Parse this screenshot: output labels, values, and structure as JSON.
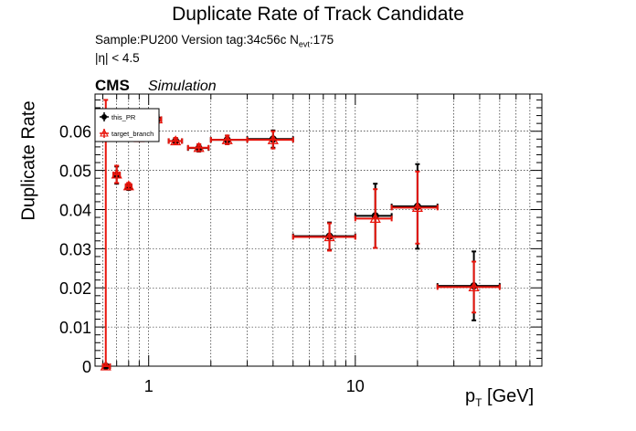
{
  "chart_data": {
    "type": "scatter",
    "title": "Duplicate Rate of Track Candidate",
    "info": {
      "sample_line_a": "Sample:PU200   Version tag:34c56c  N",
      "sample_line_sub": "evt",
      "sample_line_b": ":175",
      "eta_line": "|η| < 4.5"
    },
    "experiment_label": "CMS",
    "status_label": "Simulation",
    "xlabel": {
      "main": "p",
      "sub": "T",
      "unit": " [GeV]"
    },
    "ylabel": "Duplicate Rate",
    "x_scale": "log",
    "xlim": [
      0.55,
      80
    ],
    "ylim": [
      0,
      0.0695
    ],
    "x_tick_labels": [
      {
        "value": 1,
        "label": "1"
      },
      {
        "value": 10,
        "label": "10"
      }
    ],
    "y_tick_labels": [
      {
        "value": 0,
        "label": "0"
      },
      {
        "value": 0.01,
        "label": "0.01"
      },
      {
        "value": 0.02,
        "label": "0.02"
      },
      {
        "value": 0.03,
        "label": "0.03"
      },
      {
        "value": 0.04,
        "label": "0.04"
      },
      {
        "value": 0.05,
        "label": "0.05"
      },
      {
        "value": 0.06,
        "label": "0.06"
      }
    ],
    "grid": true,
    "legend_position": "top-left",
    "series": [
      {
        "name": "this_PR",
        "color": "#000000",
        "marker": "filled-circle",
        "points": [
          {
            "x": 0.62,
            "y": 0.0,
            "xlo": 0.6,
            "xhi": 0.65,
            "err": 0.0
          },
          {
            "x": 0.7,
            "y": 0.0488,
            "xlo": 0.675,
            "xhi": 0.725,
            "err": 0.0022
          },
          {
            "x": 0.8,
            "y": 0.0458,
            "xlo": 0.775,
            "xhi": 0.825,
            "err": 0.0008
          },
          {
            "x": 0.9,
            "y": 0.0583,
            "xlo": 0.875,
            "xhi": 0.925,
            "err": 0.0008
          },
          {
            "x": 1.0,
            "y": 0.0605,
            "xlo": 0.975,
            "xhi": 1.025,
            "err": 0.0009
          },
          {
            "x": 1.1,
            "y": 0.0631,
            "xlo": 1.05,
            "xhi": 1.15,
            "err": 0.001
          },
          {
            "x": 1.35,
            "y": 0.0575,
            "xlo": 1.25,
            "xhi": 1.45,
            "err": 0.0008
          },
          {
            "x": 1.75,
            "y": 0.0557,
            "xlo": 1.55,
            "xhi": 1.95,
            "err": 0.0009
          },
          {
            "x": 2.4,
            "y": 0.0578,
            "xlo": 2.0,
            "xhi": 3.0,
            "err": 0.0011
          },
          {
            "x": 4.0,
            "y": 0.058,
            "xlo": 3.0,
            "xhi": 5.0,
            "err": 0.0022
          },
          {
            "x": 7.5,
            "y": 0.0332,
            "xlo": 5.0,
            "xhi": 10.0,
            "err": 0.0035
          },
          {
            "x": 12.5,
            "y": 0.0384,
            "xlo": 10.0,
            "xhi": 15.0,
            "err": 0.0082
          },
          {
            "x": 20.0,
            "y": 0.0408,
            "xlo": 15.0,
            "xhi": 25.0,
            "err": 0.0108
          },
          {
            "x": 37.5,
            "y": 0.0205,
            "xlo": 25.0,
            "xhi": 50.0,
            "err": 0.0088
          }
        ]
      },
      {
        "name": "target_branch",
        "color": "#e8150c",
        "marker": "open-triangle",
        "points": [
          {
            "x": 0.62,
            "y": 0.0,
            "xlo": 0.6,
            "xhi": 0.65,
            "err": 0.068
          },
          {
            "x": 0.7,
            "y": 0.049,
            "xlo": 0.675,
            "xhi": 0.725,
            "err": 0.0022
          },
          {
            "x": 0.8,
            "y": 0.046,
            "xlo": 0.775,
            "xhi": 0.825,
            "err": 0.0008
          },
          {
            "x": 0.9,
            "y": 0.0583,
            "xlo": 0.875,
            "xhi": 0.925,
            "err": 0.0008
          },
          {
            "x": 1.0,
            "y": 0.0605,
            "xlo": 0.975,
            "xhi": 1.025,
            "err": 0.0009
          },
          {
            "x": 1.1,
            "y": 0.0631,
            "xlo": 1.05,
            "xhi": 1.15,
            "err": 0.001
          },
          {
            "x": 1.35,
            "y": 0.0575,
            "xlo": 1.25,
            "xhi": 1.45,
            "err": 0.0008
          },
          {
            "x": 1.75,
            "y": 0.0558,
            "xlo": 1.55,
            "xhi": 1.95,
            "err": 0.0009
          },
          {
            "x": 2.4,
            "y": 0.0578,
            "xlo": 2.0,
            "xhi": 3.0,
            "err": 0.0011
          },
          {
            "x": 4.0,
            "y": 0.0578,
            "xlo": 3.0,
            "xhi": 5.0,
            "err": 0.0022
          },
          {
            "x": 7.5,
            "y": 0.033,
            "xlo": 5.0,
            "xhi": 10.0,
            "err": 0.0035
          },
          {
            "x": 12.5,
            "y": 0.0377,
            "xlo": 10.0,
            "xhi": 15.0,
            "err": 0.0075
          },
          {
            "x": 20.0,
            "y": 0.0405,
            "xlo": 15.0,
            "xhi": 25.0,
            "err": 0.0092
          },
          {
            "x": 37.5,
            "y": 0.0202,
            "xlo": 25.0,
            "xhi": 50.0,
            "err": 0.0065
          }
        ]
      }
    ]
  }
}
